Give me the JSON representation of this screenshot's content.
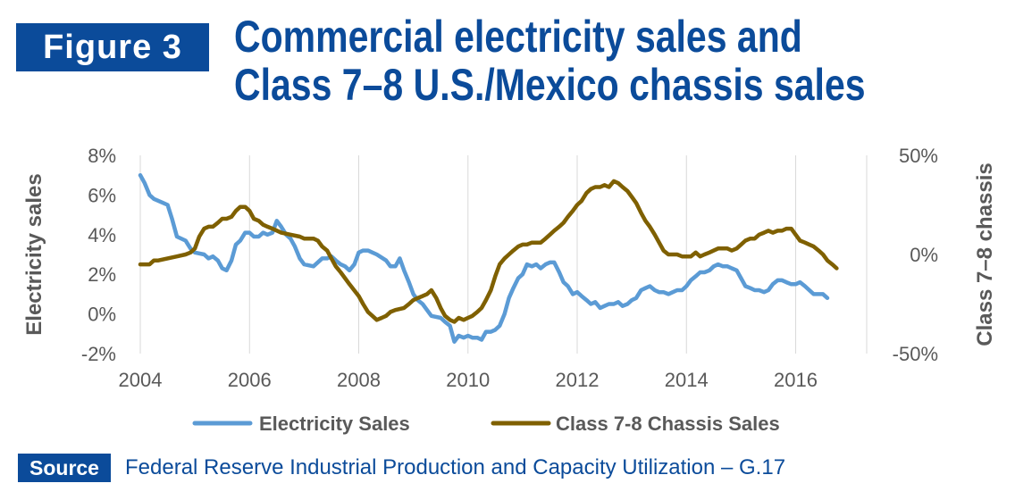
{
  "header": {
    "figure_label": "Figure 3",
    "title_line1": "Commercial electricity sales and",
    "title_line2": "Class 7–8 U.S./Mexico chassis sales"
  },
  "footer": {
    "source_label": "Source",
    "source_text": "Federal Reserve Industrial Production and Capacity Utilization – G.17"
  },
  "colors": {
    "brand_blue": "#0b4b9a",
    "electricity": "#5b9bd5",
    "chassis": "#7f6000",
    "axis_text": "#595959",
    "grid": "#d9d9d9"
  },
  "chart_data": {
    "type": "line",
    "xlabel": "",
    "x_ticks": [
      "2004",
      "2006",
      "2008",
      "2010",
      "2012",
      "2014",
      "2016"
    ],
    "xlim": [
      2004,
      2017.3
    ],
    "y_left": {
      "label": "Electricity sales",
      "ticks": [
        "8%",
        "6%",
        "4%",
        "2%",
        "0%",
        "-2%"
      ],
      "range": [
        -2,
        8
      ]
    },
    "y_right": {
      "label": "Class 7–8 chassis",
      "ticks": [
        "50%",
        "0%",
        "-50%"
      ],
      "range": [
        -50,
        50
      ]
    },
    "grid": "vertical",
    "legend": "bottom",
    "series": [
      {
        "name": "Electricity Sales",
        "axis": "left",
        "color": "#5b9bd5",
        "points": [
          [
            2004.0,
            7.0
          ],
          [
            2004.08,
            6.6
          ],
          [
            2004.17,
            6.0
          ],
          [
            2004.25,
            5.8
          ],
          [
            2004.42,
            5.6
          ],
          [
            2004.5,
            5.5
          ],
          [
            2004.58,
            4.8
          ],
          [
            2004.67,
            3.9
          ],
          [
            2004.83,
            3.7
          ],
          [
            2004.92,
            3.3
          ],
          [
            2005.0,
            3.1
          ],
          [
            2005.17,
            3.0
          ],
          [
            2005.25,
            2.8
          ],
          [
            2005.33,
            2.9
          ],
          [
            2005.42,
            2.7
          ],
          [
            2005.5,
            2.3
          ],
          [
            2005.58,
            2.2
          ],
          [
            2005.67,
            2.7
          ],
          [
            2005.75,
            3.5
          ],
          [
            2005.83,
            3.7
          ],
          [
            2005.92,
            4.1
          ],
          [
            2006.0,
            4.1
          ],
          [
            2006.08,
            3.9
          ],
          [
            2006.17,
            3.9
          ],
          [
            2006.25,
            4.1
          ],
          [
            2006.33,
            4.0
          ],
          [
            2006.42,
            4.1
          ],
          [
            2006.5,
            4.7
          ],
          [
            2006.58,
            4.4
          ],
          [
            2006.67,
            4.0
          ],
          [
            2006.75,
            3.8
          ],
          [
            2006.83,
            3.4
          ],
          [
            2006.92,
            2.8
          ],
          [
            2007.0,
            2.5
          ],
          [
            2007.17,
            2.4
          ],
          [
            2007.33,
            2.8
          ],
          [
            2007.42,
            2.8
          ],
          [
            2007.5,
            2.9
          ],
          [
            2007.58,
            2.7
          ],
          [
            2007.67,
            2.5
          ],
          [
            2007.75,
            2.4
          ],
          [
            2007.83,
            2.2
          ],
          [
            2007.92,
            2.5
          ],
          [
            2008.0,
            3.1
          ],
          [
            2008.08,
            3.2
          ],
          [
            2008.17,
            3.2
          ],
          [
            2008.25,
            3.1
          ],
          [
            2008.33,
            3.0
          ],
          [
            2008.5,
            2.7
          ],
          [
            2008.58,
            2.4
          ],
          [
            2008.67,
            2.4
          ],
          [
            2008.75,
            2.8
          ],
          [
            2008.83,
            2.2
          ],
          [
            2008.92,
            1.6
          ],
          [
            2009.0,
            1.0
          ],
          [
            2009.08,
            0.7
          ],
          [
            2009.17,
            0.5
          ],
          [
            2009.25,
            0.2
          ],
          [
            2009.33,
            -0.1
          ],
          [
            2009.5,
            -0.2
          ],
          [
            2009.58,
            -0.4
          ],
          [
            2009.67,
            -0.6
          ],
          [
            2009.75,
            -1.4
          ],
          [
            2009.83,
            -1.1
          ],
          [
            2009.92,
            -1.2
          ],
          [
            2010.0,
            -1.1
          ],
          [
            2010.08,
            -1.2
          ],
          [
            2010.17,
            -1.2
          ],
          [
            2010.25,
            -1.3
          ],
          [
            2010.33,
            -0.9
          ],
          [
            2010.42,
            -0.9
          ],
          [
            2010.5,
            -0.8
          ],
          [
            2010.58,
            -0.6
          ],
          [
            2010.67,
            0.0
          ],
          [
            2010.75,
            0.8
          ],
          [
            2010.83,
            1.3
          ],
          [
            2010.92,
            1.8
          ],
          [
            2011.0,
            2.0
          ],
          [
            2011.08,
            2.5
          ],
          [
            2011.17,
            2.4
          ],
          [
            2011.25,
            2.5
          ],
          [
            2011.33,
            2.3
          ],
          [
            2011.42,
            2.5
          ],
          [
            2011.5,
            2.6
          ],
          [
            2011.58,
            2.6
          ],
          [
            2011.67,
            2.1
          ],
          [
            2011.75,
            1.6
          ],
          [
            2011.83,
            1.4
          ],
          [
            2011.92,
            1.0
          ],
          [
            2012.0,
            1.1
          ],
          [
            2012.08,
            0.9
          ],
          [
            2012.17,
            0.7
          ],
          [
            2012.25,
            0.5
          ],
          [
            2012.33,
            0.6
          ],
          [
            2012.42,
            0.3
          ],
          [
            2012.5,
            0.4
          ],
          [
            2012.58,
            0.5
          ],
          [
            2012.67,
            0.5
          ],
          [
            2012.75,
            0.6
          ],
          [
            2012.83,
            0.4
          ],
          [
            2012.92,
            0.5
          ],
          [
            2013.0,
            0.7
          ],
          [
            2013.08,
            0.8
          ],
          [
            2013.17,
            1.2
          ],
          [
            2013.25,
            1.3
          ],
          [
            2013.33,
            1.4
          ],
          [
            2013.42,
            1.2
          ],
          [
            2013.5,
            1.1
          ],
          [
            2013.58,
            1.1
          ],
          [
            2013.67,
            1.0
          ],
          [
            2013.75,
            1.1
          ],
          [
            2013.83,
            1.2
          ],
          [
            2013.92,
            1.2
          ],
          [
            2014.0,
            1.4
          ],
          [
            2014.08,
            1.7
          ],
          [
            2014.17,
            1.9
          ],
          [
            2014.25,
            2.1
          ],
          [
            2014.33,
            2.1
          ],
          [
            2014.42,
            2.2
          ],
          [
            2014.5,
            2.4
          ],
          [
            2014.58,
            2.5
          ],
          [
            2014.67,
            2.4
          ],
          [
            2014.75,
            2.4
          ],
          [
            2014.83,
            2.3
          ],
          [
            2014.92,
            2.2
          ],
          [
            2015.0,
            1.8
          ],
          [
            2015.08,
            1.4
          ],
          [
            2015.17,
            1.3
          ],
          [
            2015.25,
            1.2
          ],
          [
            2015.33,
            1.2
          ],
          [
            2015.42,
            1.1
          ],
          [
            2015.5,
            1.2
          ],
          [
            2015.58,
            1.5
          ],
          [
            2015.67,
            1.7
          ],
          [
            2015.75,
            1.7
          ],
          [
            2015.83,
            1.6
          ],
          [
            2015.92,
            1.5
          ],
          [
            2016.0,
            1.5
          ],
          [
            2016.08,
            1.6
          ],
          [
            2016.17,
            1.4
          ],
          [
            2016.25,
            1.2
          ],
          [
            2016.33,
            1.0
          ],
          [
            2016.42,
            1.0
          ],
          [
            2016.5,
            1.0
          ],
          [
            2016.58,
            0.8
          ]
        ]
      },
      {
        "name": "Class 7-8 Chassis Sales",
        "axis": "right",
        "color": "#7f6000",
        "points": [
          [
            2004.0,
            -5
          ],
          [
            2004.08,
            -5
          ],
          [
            2004.17,
            -5
          ],
          [
            2004.25,
            -3
          ],
          [
            2004.33,
            -3
          ],
          [
            2004.5,
            -2
          ],
          [
            2004.67,
            -1
          ],
          [
            2004.83,
            0
          ],
          [
            2004.92,
            1
          ],
          [
            2005.0,
            3
          ],
          [
            2005.08,
            9
          ],
          [
            2005.17,
            13
          ],
          [
            2005.25,
            14
          ],
          [
            2005.33,
            14
          ],
          [
            2005.42,
            16
          ],
          [
            2005.5,
            18
          ],
          [
            2005.58,
            18
          ],
          [
            2005.67,
            19
          ],
          [
            2005.75,
            22
          ],
          [
            2005.83,
            24
          ],
          [
            2005.92,
            24
          ],
          [
            2006.0,
            22
          ],
          [
            2006.08,
            18
          ],
          [
            2006.17,
            17
          ],
          [
            2006.25,
            15
          ],
          [
            2006.33,
            14
          ],
          [
            2006.42,
            13
          ],
          [
            2006.58,
            11
          ],
          [
            2006.75,
            10
          ],
          [
            2006.92,
            9
          ],
          [
            2007.0,
            8
          ],
          [
            2007.08,
            8
          ],
          [
            2007.17,
            8
          ],
          [
            2007.25,
            7
          ],
          [
            2007.33,
            4
          ],
          [
            2007.42,
            2
          ],
          [
            2007.5,
            -2
          ],
          [
            2007.58,
            -6
          ],
          [
            2007.67,
            -9
          ],
          [
            2007.75,
            -12
          ],
          [
            2007.83,
            -15
          ],
          [
            2008.0,
            -21
          ],
          [
            2008.08,
            -25
          ],
          [
            2008.17,
            -29
          ],
          [
            2008.25,
            -31
          ],
          [
            2008.33,
            -33
          ],
          [
            2008.42,
            -32
          ],
          [
            2008.5,
            -31
          ],
          [
            2008.58,
            -29
          ],
          [
            2008.67,
            -28
          ],
          [
            2008.83,
            -27
          ],
          [
            2008.92,
            -25
          ],
          [
            2009.0,
            -23
          ],
          [
            2009.08,
            -22
          ],
          [
            2009.17,
            -21
          ],
          [
            2009.25,
            -20
          ],
          [
            2009.33,
            -18
          ],
          [
            2009.42,
            -22
          ],
          [
            2009.5,
            -27
          ],
          [
            2009.58,
            -31
          ],
          [
            2009.67,
            -33
          ],
          [
            2009.75,
            -34
          ],
          [
            2009.83,
            -32
          ],
          [
            2009.92,
            -33
          ],
          [
            2010.0,
            -32
          ],
          [
            2010.08,
            -31
          ],
          [
            2010.17,
            -29
          ],
          [
            2010.25,
            -27
          ],
          [
            2010.33,
            -23
          ],
          [
            2010.42,
            -18
          ],
          [
            2010.5,
            -11
          ],
          [
            2010.58,
            -5
          ],
          [
            2010.67,
            -2
          ],
          [
            2010.75,
            0
          ],
          [
            2010.83,
            2
          ],
          [
            2010.92,
            4
          ],
          [
            2011.0,
            5
          ],
          [
            2011.08,
            5
          ],
          [
            2011.17,
            6
          ],
          [
            2011.25,
            6
          ],
          [
            2011.33,
            6
          ],
          [
            2011.42,
            8
          ],
          [
            2011.5,
            10
          ],
          [
            2011.58,
            12
          ],
          [
            2011.67,
            14
          ],
          [
            2011.75,
            16
          ],
          [
            2011.83,
            19
          ],
          [
            2011.92,
            22
          ],
          [
            2012.0,
            25
          ],
          [
            2012.08,
            27
          ],
          [
            2012.17,
            31
          ],
          [
            2012.25,
            33
          ],
          [
            2012.33,
            34
          ],
          [
            2012.42,
            34
          ],
          [
            2012.5,
            35
          ],
          [
            2012.58,
            34
          ],
          [
            2012.67,
            37
          ],
          [
            2012.75,
            36
          ],
          [
            2012.83,
            34
          ],
          [
            2012.92,
            32
          ],
          [
            2013.0,
            29
          ],
          [
            2013.08,
            26
          ],
          [
            2013.17,
            21
          ],
          [
            2013.25,
            17
          ],
          [
            2013.33,
            14
          ],
          [
            2013.42,
            10
          ],
          [
            2013.5,
            6
          ],
          [
            2013.58,
            2
          ],
          [
            2013.67,
            0
          ],
          [
            2013.75,
            0
          ],
          [
            2013.83,
            0
          ],
          [
            2013.92,
            -1
          ],
          [
            2014.0,
            -1
          ],
          [
            2014.08,
            -1
          ],
          [
            2014.17,
            1
          ],
          [
            2014.25,
            -1
          ],
          [
            2014.33,
            0
          ],
          [
            2014.42,
            1
          ],
          [
            2014.5,
            2
          ],
          [
            2014.58,
            3
          ],
          [
            2014.67,
            3
          ],
          [
            2014.75,
            3
          ],
          [
            2014.83,
            2
          ],
          [
            2014.92,
            3
          ],
          [
            2015.0,
            5
          ],
          [
            2015.08,
            7
          ],
          [
            2015.17,
            8
          ],
          [
            2015.25,
            8
          ],
          [
            2015.33,
            10
          ],
          [
            2015.42,
            11
          ],
          [
            2015.5,
            12
          ],
          [
            2015.58,
            11
          ],
          [
            2015.67,
            12
          ],
          [
            2015.75,
            12
          ],
          [
            2015.83,
            13
          ],
          [
            2015.92,
            13
          ],
          [
            2016.0,
            10
          ],
          [
            2016.08,
            7
          ],
          [
            2016.17,
            6
          ],
          [
            2016.25,
            5
          ],
          [
            2016.33,
            4
          ],
          [
            2016.42,
            2
          ],
          [
            2016.5,
            0
          ],
          [
            2016.58,
            -3
          ],
          [
            2016.67,
            -5
          ],
          [
            2016.75,
            -7
          ]
        ]
      }
    ]
  }
}
